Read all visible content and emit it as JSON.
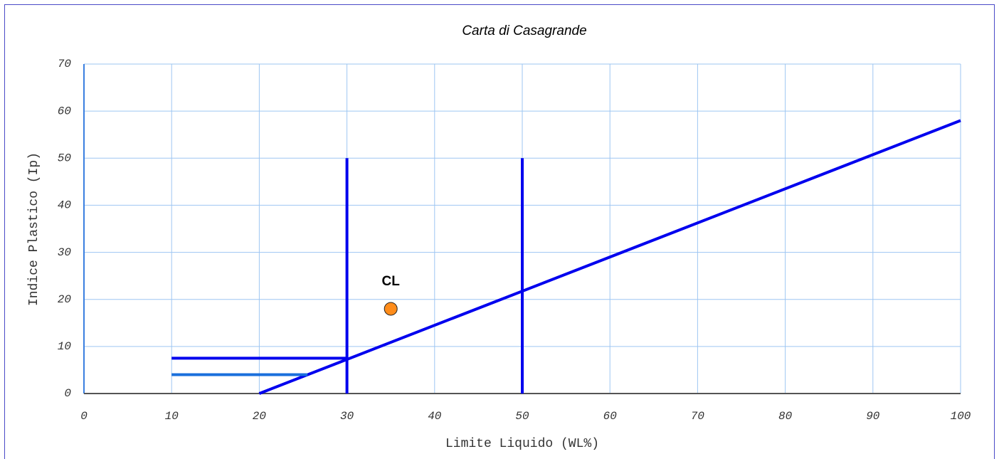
{
  "chart_data": {
    "type": "line",
    "title": "Carta di Casagrande",
    "x_label": "Limite Liquido   (WL%)",
    "y_label": "Indice Plastico   (Ip)",
    "xlim": [
      0,
      100
    ],
    "ylim": [
      0,
      70
    ],
    "xticks": [
      0,
      10,
      20,
      30,
      40,
      50,
      60,
      70,
      80,
      90,
      100
    ],
    "yticks": [
      0,
      10,
      20,
      30,
      40,
      50,
      60,
      70
    ],
    "grid": true,
    "series": [
      {
        "type": "line",
        "color": "#0000ee",
        "x": [
          20,
          100
        ],
        "values": [
          0,
          58
        ]
      },
      {
        "type": "line",
        "color": "#0000ee",
        "x": [
          30,
          30
        ],
        "values": [
          0,
          50
        ]
      },
      {
        "type": "line",
        "color": "#0000ee",
        "x": [
          50,
          50
        ],
        "values": [
          0,
          50
        ]
      },
      {
        "type": "line",
        "color": "#0000ee",
        "x": [
          10,
          30
        ],
        "values": [
          7.5,
          7.5
        ]
      },
      {
        "type": "line",
        "color": "#1a6fdc",
        "x": [
          10,
          25.5
        ],
        "values": [
          4,
          4
        ]
      },
      {
        "type": "scatter",
        "color": "#ff8c1a",
        "x": [
          35
        ],
        "values": [
          18
        ],
        "labels": [
          "CL"
        ]
      }
    ]
  }
}
